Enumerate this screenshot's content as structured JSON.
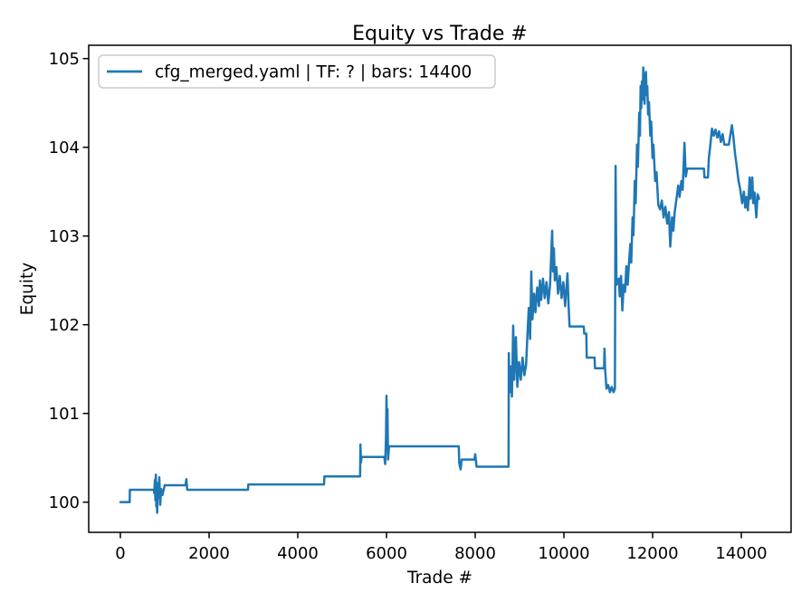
{
  "figure": {
    "background": "#ffffff"
  },
  "chart_data": {
    "type": "line",
    "title": "Equity vs Trade #",
    "xlabel": "Trade #",
    "ylabel": "Equity",
    "grid": false,
    "xlim": [
      -714,
      15122
    ],
    "ylim": [
      99.66,
      105.15
    ],
    "xticks": [
      0,
      2000,
      4000,
      6000,
      8000,
      10000,
      12000,
      14000
    ],
    "yticks": [
      100,
      101,
      102,
      103,
      104,
      105
    ],
    "legend": {
      "position": "upper left",
      "entries": [
        {
          "label": "cfg_merged.yaml | TF: ? | bars: 14400",
          "color": "#1f77b4"
        }
      ]
    },
    "axis_color": "#000000",
    "legend_border_color": "#cccccc",
    "series": [
      {
        "name": "cfg_merged.yaml | TF: ? | bars: 14400",
        "color": "#1f77b4",
        "points": [
          [
            1,
            100.0
          ],
          [
            210,
            100.0
          ],
          [
            214,
            100.14
          ],
          [
            755,
            100.14
          ],
          [
            765,
            100.1
          ],
          [
            778,
            100.25
          ],
          [
            790,
            100.02
          ],
          [
            800,
            100.31
          ],
          [
            810,
            99.95
          ],
          [
            820,
            100.22
          ],
          [
            830,
            99.88
          ],
          [
            845,
            100.18
          ],
          [
            858,
            100.05
          ],
          [
            878,
            100.28
          ],
          [
            898,
            99.97
          ],
          [
            918,
            100.15
          ],
          [
            948,
            100.08
          ],
          [
            1000,
            100.19
          ],
          [
            1470,
            100.19
          ],
          [
            1488,
            100.26
          ],
          [
            1508,
            100.14
          ],
          [
            2878,
            100.14
          ],
          [
            2884,
            100.2
          ],
          [
            4592,
            100.2
          ],
          [
            4600,
            100.29
          ],
          [
            5405,
            100.29
          ],
          [
            5412,
            100.65
          ],
          [
            5425,
            100.45
          ],
          [
            5438,
            100.51
          ],
          [
            5950,
            100.51
          ],
          [
            5970,
            100.43
          ],
          [
            5988,
            100.7
          ],
          [
            6000,
            101.2
          ],
          [
            6012,
            100.75
          ],
          [
            6022,
            101.05
          ],
          [
            6035,
            100.48
          ],
          [
            6058,
            100.63
          ],
          [
            7630,
            100.63
          ],
          [
            7640,
            100.44
          ],
          [
            7672,
            100.37
          ],
          [
            7695,
            100.48
          ],
          [
            7985,
            100.48
          ],
          [
            8000,
            100.54
          ],
          [
            8032,
            100.4
          ],
          [
            8752,
            100.4
          ],
          [
            8758,
            101.68
          ],
          [
            8772,
            101.33
          ],
          [
            8788,
            101.24
          ],
          [
            8808,
            101.53
          ],
          [
            8828,
            101.19
          ],
          [
            8857,
            101.99
          ],
          [
            8880,
            101.38
          ],
          [
            8918,
            101.86
          ],
          [
            8950,
            101.3
          ],
          [
            8988,
            101.58
          ],
          [
            9028,
            101.38
          ],
          [
            9068,
            101.63
          ],
          [
            9108,
            101.43
          ],
          [
            9148,
            101.55
          ],
          [
            9178,
            101.89
          ],
          [
            9208,
            102.19
          ],
          [
            9238,
            101.84
          ],
          [
            9265,
            102.6
          ],
          [
            9290,
            102.06
          ],
          [
            9328,
            102.35
          ],
          [
            9358,
            102.14
          ],
          [
            9398,
            102.42
          ],
          [
            9438,
            102.21
          ],
          [
            9458,
            102.5
          ],
          [
            9488,
            102.28
          ],
          [
            9528,
            102.52
          ],
          [
            9568,
            102.3
          ],
          [
            9608,
            102.48
          ],
          [
            9648,
            102.24
          ],
          [
            9688,
            102.45
          ],
          [
            9735,
            103.06
          ],
          [
            9755,
            102.6
          ],
          [
            9775,
            102.86
          ],
          [
            9795,
            102.5
          ],
          [
            9830,
            102.65
          ],
          [
            9868,
            102.35
          ],
          [
            9908,
            102.55
          ],
          [
            9948,
            102.3
          ],
          [
            9988,
            102.48
          ],
          [
            10028,
            102.21
          ],
          [
            10080,
            102.58
          ],
          [
            10108,
            102.19
          ],
          [
            10128,
            101.98
          ],
          [
            10448,
            101.98
          ],
          [
            10458,
            101.9
          ],
          [
            10505,
            101.9
          ],
          [
            10515,
            101.63
          ],
          [
            10692,
            101.63
          ],
          [
            10700,
            101.51
          ],
          [
            10905,
            101.51
          ],
          [
            10915,
            101.73
          ],
          [
            10928,
            101.51
          ],
          [
            10960,
            101.28
          ],
          [
            10998,
            101.32
          ],
          [
            11038,
            101.24
          ],
          [
            11078,
            101.3
          ],
          [
            11120,
            101.24
          ],
          [
            11150,
            101.28
          ],
          [
            11165,
            103.79
          ],
          [
            11185,
            102.45
          ],
          [
            11238,
            102.52
          ],
          [
            11258,
            102.32
          ],
          [
            11288,
            102.55
          ],
          [
            11318,
            102.16
          ],
          [
            11348,
            102.45
          ],
          [
            11378,
            102.37
          ],
          [
            11408,
            102.66
          ],
          [
            11438,
            102.45
          ],
          [
            11468,
            102.7
          ],
          [
            11498,
            102.91
          ],
          [
            11518,
            102.7
          ],
          [
            11548,
            103.21
          ],
          [
            11568,
            103.01
          ],
          [
            11598,
            103.62
          ],
          [
            11618,
            103.37
          ],
          [
            11648,
            104.03
          ],
          [
            11668,
            103.78
          ],
          [
            11698,
            104.39
          ],
          [
            11714,
            104.13
          ],
          [
            11730,
            104.69
          ],
          [
            11744,
            104.44
          ],
          [
            11758,
            104.74
          ],
          [
            11774,
            104.54
          ],
          [
            11790,
            104.9
          ],
          [
            11804,
            104.59
          ],
          [
            11818,
            104.49
          ],
          [
            11834,
            104.8
          ],
          [
            11850,
            104.85
          ],
          [
            11864,
            104.59
          ],
          [
            11880,
            104.69
          ],
          [
            11898,
            104.37
          ],
          [
            11918,
            104.51
          ],
          [
            11948,
            104.13
          ],
          [
            11968,
            104.29
          ],
          [
            11998,
            103.88
          ],
          [
            12018,
            104.03
          ],
          [
            12058,
            103.62
          ],
          [
            12088,
            103.72
          ],
          [
            12128,
            103.35
          ],
          [
            12168,
            103.3
          ],
          [
            12208,
            103.4
          ],
          [
            12248,
            103.21
          ],
          [
            12288,
            103.33
          ],
          [
            12328,
            103.14
          ],
          [
            12368,
            103.27
          ],
          [
            12398,
            102.88
          ],
          [
            12438,
            103.21
          ],
          [
            12468,
            103.06
          ],
          [
            12498,
            103.27
          ],
          [
            12538,
            103.42
          ],
          [
            12578,
            103.57
          ],
          [
            12608,
            103.44
          ],
          [
            12648,
            103.62
          ],
          [
            12678,
            103.52
          ],
          [
            12718,
            104.05
          ],
          [
            12748,
            103.67
          ],
          [
            12778,
            103.76
          ],
          [
            13158,
            103.76
          ],
          [
            13168,
            103.66
          ],
          [
            13248,
            103.66
          ],
          [
            13268,
            103.88
          ],
          [
            13298,
            104.01
          ],
          [
            13338,
            104.21
          ],
          [
            13378,
            104.13
          ],
          [
            13418,
            104.2
          ],
          [
            13458,
            104.11
          ],
          [
            13498,
            104.18
          ],
          [
            13538,
            104.06
          ],
          [
            13578,
            104.15
          ],
          [
            13618,
            104.03
          ],
          [
            13718,
            104.03
          ],
          [
            13740,
            104.1
          ],
          [
            13788,
            104.25
          ],
          [
            13818,
            104.13
          ],
          [
            13858,
            103.93
          ],
          [
            13898,
            103.78
          ],
          [
            13938,
            103.62
          ],
          [
            13978,
            103.52
          ],
          [
            14018,
            103.37
          ],
          [
            14058,
            103.5
          ],
          [
            14088,
            103.32
          ],
          [
            14118,
            103.44
          ],
          [
            14148,
            103.29
          ],
          [
            14188,
            103.66
          ],
          [
            14208,
            103.42
          ],
          [
            14248,
            103.66
          ],
          [
            14268,
            103.37
          ],
          [
            14298,
            103.49
          ],
          [
            14338,
            103.21
          ],
          [
            14368,
            103.47
          ],
          [
            14400,
            103.42
          ]
        ]
      }
    ]
  }
}
